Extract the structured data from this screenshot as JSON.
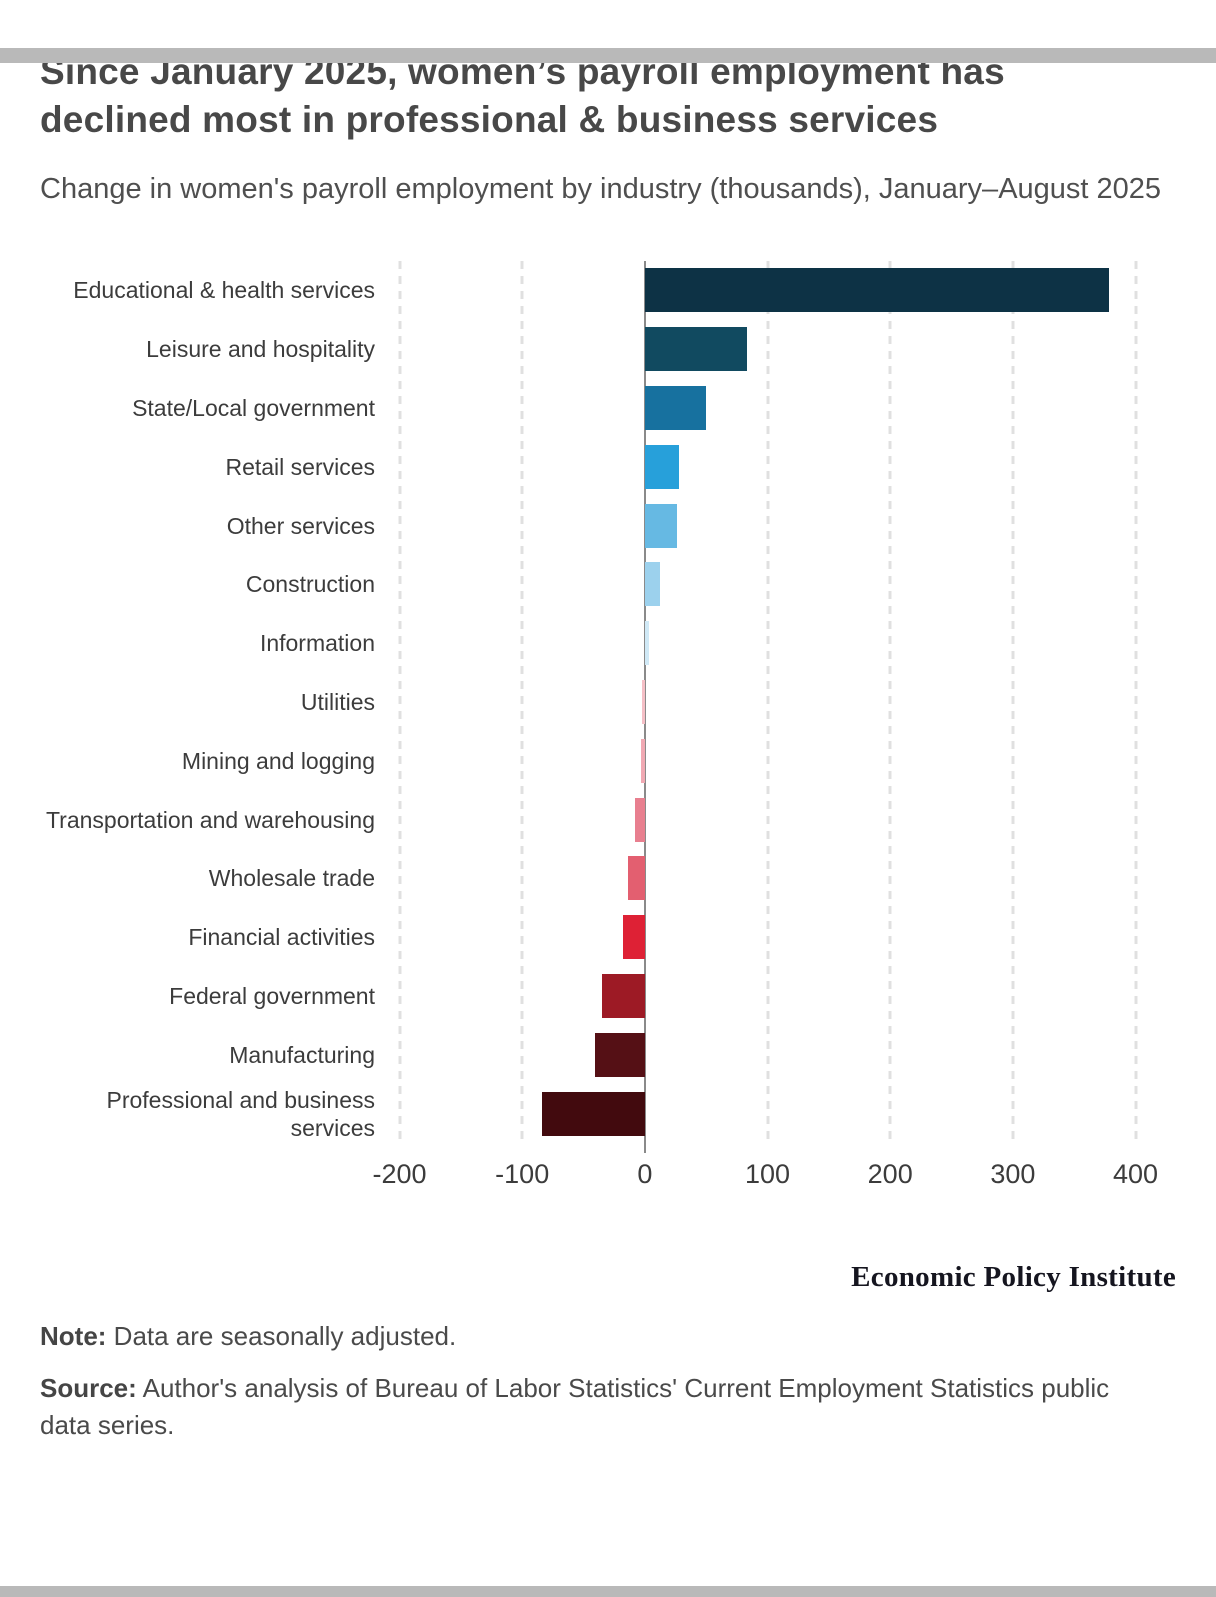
{
  "page": {
    "title": "Since January 2025, women’s payroll employment has declined most in professional & business services",
    "subtitle": "Change in women's payroll employment by industry (thousands), January–August 2025",
    "logo": "Economic Policy Institute",
    "note_label": "Note:",
    "note_text": " Data are seasonally adjusted.",
    "source_label": "Source:",
    "source_text": " Author's analysis of Bureau of Labor Statistics' Current Employment Statistics public data series."
  },
  "chart_data": {
    "type": "bar",
    "orientation": "horizontal",
    "title": "Change in women's payroll employment by industry (thousands), January–August 2025",
    "unit": "thousands",
    "categories": [
      "Educational & health services",
      "Leisure and hospitality",
      "State/Local government",
      "Retail services",
      "Other services",
      "Construction",
      "Information",
      "Utilities",
      "Mining and logging",
      "Transportation and warehousing",
      "Wholesale trade",
      "Financial activities",
      "Federal government",
      "Manufacturing",
      "Professional and business services"
    ],
    "values": [
      378,
      83,
      50,
      28,
      26,
      12,
      3,
      -2,
      -3,
      -8,
      -14,
      -18,
      -35,
      -41,
      -84
    ],
    "colors": [
      "#0d3245",
      "#114a60",
      "#17719f",
      "#27a0da",
      "#66b9e3",
      "#9cd1ed",
      "#d0e9f6",
      "#f5bfc6",
      "#f1a9b3",
      "#e87f8f",
      "#e35f70",
      "#de2135",
      "#9d1a25",
      "#551015",
      "#420a0e"
    ],
    "xlabel": "",
    "ylabel": "",
    "xlim": [
      -220,
      433
    ],
    "x_ticks": [
      -200,
      -100,
      0,
      100,
      200,
      300,
      400
    ],
    "x_tick_labels": [
      "-200",
      "-100",
      "0",
      "100",
      "200",
      "300",
      "400"
    ],
    "grid": "dashed-vertical",
    "gridline_color": "#e0e0e0",
    "zero_line_color": "#8a8a8a",
    "legend": "none"
  }
}
